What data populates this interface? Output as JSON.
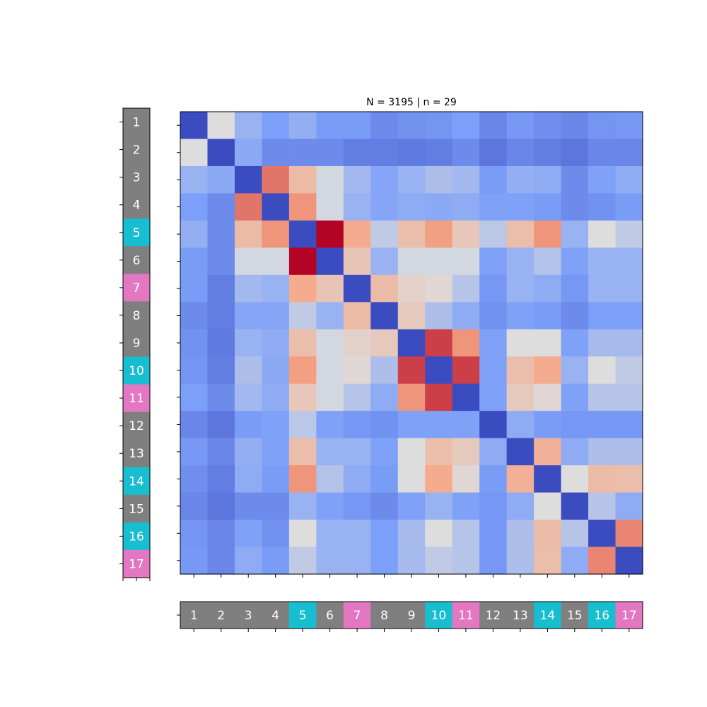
{
  "chart_data": {
    "type": "heatmap",
    "title": "N = 3195 | n = 29",
    "labels": [
      "1",
      "2",
      "3",
      "4",
      "5",
      "6",
      "7",
      "8",
      "9",
      "10",
      "11",
      "12",
      "13",
      "14",
      "15",
      "16",
      "17"
    ],
    "label_groups": [
      "gray",
      "gray",
      "gray",
      "gray",
      "cyan",
      "gray",
      "pink",
      "gray",
      "gray",
      "cyan",
      "pink",
      "gray",
      "gray",
      "cyan",
      "gray",
      "cyan",
      "pink"
    ],
    "group_colors": {
      "gray": "#7f7f7f",
      "cyan": "#17becf",
      "pink": "#e377c2"
    },
    "colormap": "coolwarm",
    "value_range": [
      -1,
      1
    ],
    "diagonal_value": -1.0,
    "values": [
      [
        -1.0,
        0.0,
        -0.35,
        -0.5,
        -0.38,
        -0.52,
        -0.52,
        -0.62,
        -0.58,
        -0.56,
        -0.5,
        -0.65,
        -0.54,
        -0.6,
        -0.65,
        -0.56,
        -0.54
      ],
      [
        0.0,
        -1.0,
        -0.42,
        -0.62,
        -0.62,
        -0.62,
        -0.7,
        -0.7,
        -0.72,
        -0.7,
        -0.62,
        -0.75,
        -0.65,
        -0.7,
        -0.75,
        -0.65,
        -0.65
      ],
      [
        -0.35,
        -0.42,
        -1.0,
        0.65,
        0.3,
        -0.05,
        -0.3,
        -0.45,
        -0.35,
        -0.25,
        -0.3,
        -0.52,
        -0.38,
        -0.4,
        -0.62,
        -0.48,
        -0.4
      ],
      [
        -0.5,
        -0.62,
        0.65,
        -1.0,
        0.55,
        -0.05,
        -0.35,
        -0.45,
        -0.4,
        -0.42,
        -0.4,
        -0.48,
        -0.48,
        -0.52,
        -0.62,
        -0.58,
        -0.52
      ],
      [
        -0.38,
        -0.62,
        0.3,
        0.55,
        -1.0,
        1.0,
        0.45,
        -0.15,
        0.28,
        0.52,
        0.2,
        -0.18,
        0.28,
        0.55,
        -0.35,
        0.0,
        -0.15
      ],
      [
        -0.52,
        -0.62,
        -0.05,
        -0.05,
        1.0,
        -1.0,
        0.22,
        -0.35,
        -0.05,
        -0.05,
        -0.05,
        -0.48,
        -0.35,
        -0.22,
        -0.48,
        -0.35,
        -0.35
      ],
      [
        -0.52,
        -0.7,
        -0.3,
        -0.35,
        0.45,
        0.22,
        -1.0,
        0.3,
        0.12,
        0.05,
        -0.2,
        -0.55,
        -0.35,
        -0.4,
        -0.55,
        -0.35,
        -0.35
      ],
      [
        -0.62,
        -0.7,
        -0.45,
        -0.45,
        -0.15,
        -0.35,
        0.3,
        -1.0,
        0.18,
        -0.25,
        -0.4,
        -0.58,
        -0.48,
        -0.52,
        -0.62,
        -0.5,
        -0.5
      ],
      [
        -0.58,
        -0.72,
        -0.35,
        -0.4,
        0.28,
        -0.05,
        0.12,
        0.18,
        -1.0,
        0.82,
        0.55,
        -0.48,
        0.0,
        0.0,
        -0.48,
        -0.28,
        -0.28
      ],
      [
        -0.56,
        -0.7,
        -0.25,
        -0.42,
        0.52,
        -0.05,
        0.05,
        -0.25,
        0.82,
        -1.0,
        0.82,
        -0.48,
        0.28,
        0.45,
        -0.35,
        0.0,
        -0.15
      ],
      [
        -0.5,
        -0.62,
        -0.3,
        -0.4,
        0.2,
        -0.05,
        -0.2,
        -0.4,
        0.55,
        0.82,
        -1.0,
        -0.48,
        0.18,
        0.05,
        -0.48,
        -0.2,
        -0.2
      ],
      [
        -0.65,
        -0.75,
        -0.52,
        -0.48,
        -0.18,
        -0.48,
        -0.55,
        -0.58,
        -0.48,
        -0.48,
        -0.48,
        -1.0,
        -0.4,
        -0.52,
        -0.55,
        -0.55,
        -0.55
      ],
      [
        -0.54,
        -0.65,
        -0.38,
        -0.48,
        0.28,
        -0.35,
        -0.35,
        -0.48,
        0.0,
        0.28,
        0.18,
        -0.4,
        -1.0,
        0.4,
        -0.4,
        -0.25,
        -0.25
      ],
      [
        -0.6,
        -0.7,
        -0.4,
        -0.52,
        0.55,
        -0.22,
        -0.4,
        -0.52,
        0.0,
        0.45,
        0.05,
        -0.52,
        0.4,
        -1.0,
        0.0,
        0.3,
        0.28
      ],
      [
        -0.65,
        -0.75,
        -0.62,
        -0.62,
        -0.35,
        -0.48,
        -0.55,
        -0.62,
        -0.48,
        -0.35,
        -0.48,
        -0.55,
        -0.4,
        0.0,
        -1.0,
        -0.2,
        -0.4
      ],
      [
        -0.56,
        -0.65,
        -0.48,
        -0.58,
        0.0,
        -0.35,
        -0.35,
        -0.5,
        -0.28,
        0.0,
        -0.2,
        -0.55,
        -0.25,
        0.3,
        -0.2,
        -1.0,
        0.6
      ],
      [
        -0.54,
        -0.65,
        -0.4,
        -0.52,
        -0.15,
        -0.35,
        -0.35,
        -0.5,
        -0.28,
        -0.15,
        -0.2,
        -0.55,
        -0.25,
        0.28,
        -0.4,
        0.6,
        -1.0
      ]
    ]
  }
}
